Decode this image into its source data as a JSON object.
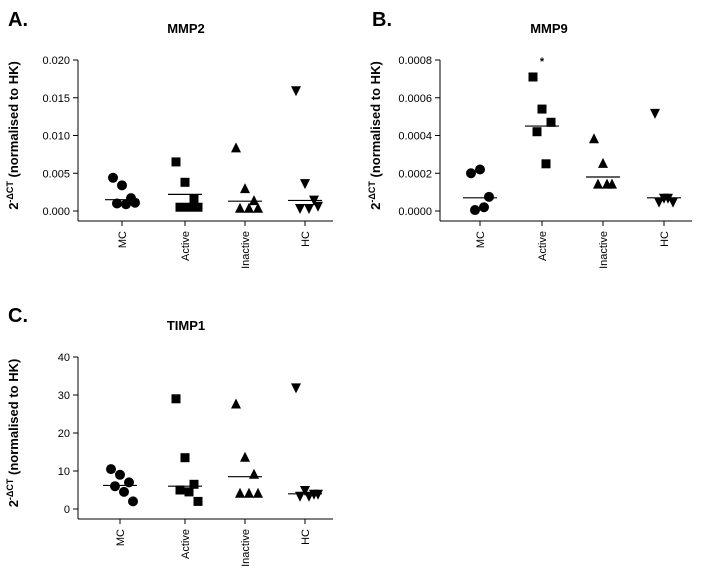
{
  "chart_data": [
    {
      "type": "dot",
      "panel": "A.",
      "title": "MMP2",
      "ylabel": {
        "base": "2",
        "exponent": "-ΔCT",
        "rest": " (normalised to HK)"
      },
      "categories": [
        "MC",
        "Active",
        "Inactive",
        "HC"
      ],
      "markers": [
        "circle",
        "square",
        "triangle-up",
        "triangle-down"
      ],
      "color": "#000000",
      "values": [
        [
          0.0044,
          0.0034,
          0.0017,
          0.001,
          0.0009,
          0.0011
        ],
        [
          0.0065,
          0.0038,
          0.0016,
          0.0005,
          0.0005,
          0.0005
        ],
        [
          0.0083,
          0.0029,
          0.0013,
          0.0003,
          0.0003,
          0.0003
        ],
        [
          0.016,
          0.0037,
          0.0015,
          0.0004,
          0.0004,
          0.0007
        ]
      ],
      "medians": [
        0.0015,
        0.0022,
        0.0013,
        0.0014
      ],
      "ylim": [
        0,
        0.02
      ],
      "yticks": [
        {
          "value": 0,
          "label": "0.000"
        },
        {
          "value": 0.005,
          "label": "0.005"
        },
        {
          "value": 0.01,
          "label": "0.010"
        },
        {
          "value": 0.015,
          "label": "0.015"
        },
        {
          "value": 0.02,
          "label": "0.020"
        }
      ]
    },
    {
      "type": "dot",
      "panel": "B.",
      "title": "MMP9",
      "ylabel": {
        "base": "2",
        "exponent": "-ΔCT",
        "rest": " (normalised to HK)"
      },
      "categories": [
        "MC",
        "Active",
        "Inactive",
        "HC"
      ],
      "markers": [
        "circle",
        "square",
        "triangle-up",
        "triangle-down"
      ],
      "color": "#000000",
      "values": [
        [
          0.0002,
          0.00022,
          7.5e-05,
          5e-06,
          2e-05
        ],
        [
          0.00071,
          0.00054,
          0.00047,
          0.00042,
          0.00025
        ],
        [
          0.00038,
          0.00025,
          0.00014,
          0.00014,
          0.00014
        ],
        [
          0.00052,
          7e-05,
          5e-05,
          5e-05,
          7e-05
        ]
      ],
      "medians": [
        7e-05,
        0.00045,
        0.00018,
        7e-05
      ],
      "annotations": [
        {
          "text": "*",
          "x": "Active"
        }
      ],
      "ylim": [
        0,
        0.0008
      ],
      "yticks": [
        {
          "value": 0,
          "label": "0.0000"
        },
        {
          "value": 0.0002,
          "label": "0.0002"
        },
        {
          "value": 0.0004,
          "label": "0.0004"
        },
        {
          "value": 0.0006,
          "label": "0.0006"
        },
        {
          "value": 0.0008,
          "label": "0.0008"
        }
      ]
    },
    {
      "type": "dot",
      "panel": "C.",
      "title": "TIMP1",
      "ylabel": {
        "base": "2",
        "exponent": "-ΔCT",
        "rest": " (normalised to HK)"
      },
      "categories": [
        "MC",
        "Active",
        "Inactive",
        "HC"
      ],
      "markers": [
        "circle",
        "square",
        "triangle-up",
        "triangle-down"
      ],
      "color": "#000000",
      "values": [
        [
          10.5,
          9,
          7,
          6,
          4.5,
          2
        ],
        [
          29,
          13.5,
          6.5,
          5,
          4.5,
          2
        ],
        [
          27.5,
          13.5,
          9,
          4,
          4,
          4
        ],
        [
          32,
          5,
          4,
          3.5,
          3.5,
          4
        ]
      ],
      "medians": [
        6.2,
        6,
        8.5,
        4
      ],
      "ylim": [
        0,
        40
      ],
      "yticks": [
        0,
        10,
        20,
        30,
        40
      ]
    }
  ]
}
